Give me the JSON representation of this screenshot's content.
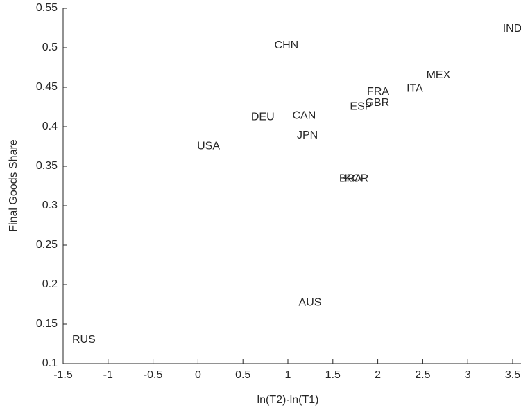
{
  "chart_data": {
    "type": "scatter",
    "xlabel": "ln(T2)-ln(T1)",
    "ylabel": "Final Goods Share",
    "labels": [
      "IND",
      "CHN",
      "MEX",
      "ITA",
      "FRA",
      "GBR",
      "ESP",
      "DEU",
      "CAN",
      "JPN",
      "USA",
      "BRA",
      "KOR",
      "AUS",
      "RUS"
    ],
    "x": [
      3.39,
      0.85,
      2.54,
      2.32,
      1.88,
      1.86,
      1.69,
      0.59,
      1.05,
      1.1,
      -0.01,
      1.57,
      1.63,
      1.12,
      -1.4
    ],
    "y": [
      0.524,
      0.503,
      0.465,
      0.448,
      0.444,
      0.43,
      0.425,
      0.412,
      0.414,
      0.389,
      0.375,
      0.334,
      0.334,
      0.177,
      0.13
    ],
    "color": "#000000",
    "xlim": [
      -1.5,
      3.5
    ],
    "ylim": [
      0.1,
      0.55
    ],
    "xticks": [
      -1.5,
      -1,
      -0.5,
      0,
      0.5,
      1,
      1.5,
      2,
      2.5,
      3,
      3.5
    ],
    "yticks": [
      0.1,
      0.15,
      0.2,
      0.25,
      0.3,
      0.35,
      0.4,
      0.45,
      0.5,
      0.55
    ]
  }
}
